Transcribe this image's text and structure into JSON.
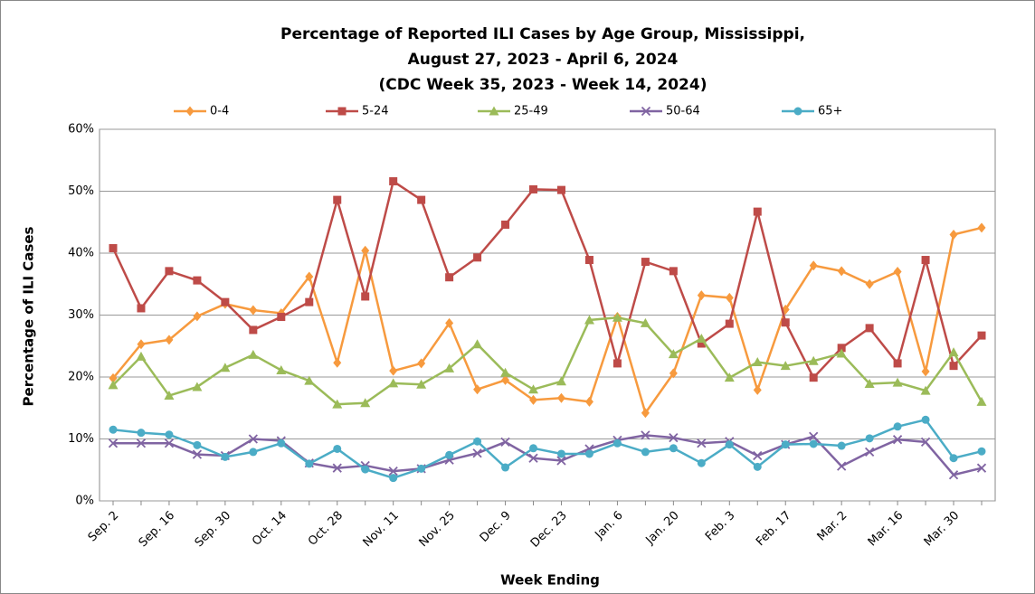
{
  "chart_data": {
    "type": "line",
    "title": [
      "Percentage of Reported ILI Cases by Age Group, Mississippi,",
      "August 27, 2023 - April 6, 2024",
      "(CDC Week 35, 2023 - Week 14, 2024)"
    ],
    "x_label": "Week Ending",
    "y_label": "Percentage of ILI Cases",
    "categories": [
      "Sep. 2",
      null,
      "Sep. 16",
      null,
      "Sep. 30",
      null,
      "Oct. 14",
      null,
      "Oct. 28",
      null,
      "Nov. 11",
      null,
      "Nov. 25",
      null,
      "Dec. 9",
      null,
      "Dec. 23",
      null,
      "Jan. 6",
      null,
      "Jan. 20",
      null,
      "Feb. 3",
      null,
      "Feb. 17",
      null,
      "Mar. 2",
      null,
      "Mar. 16",
      null,
      "Mar. 30",
      null
    ],
    "ylim": [
      0,
      60
    ],
    "yticks": [
      {
        "value": 0,
        "label": "0%"
      },
      {
        "value": 10,
        "label": "10%"
      },
      {
        "value": 20,
        "label": "20%"
      },
      {
        "value": 30,
        "label": "30%"
      },
      {
        "value": 40,
        "label": "40%"
      },
      {
        "value": 50,
        "label": "50%"
      },
      {
        "value": 60,
        "label": "60%"
      }
    ],
    "grid": true,
    "legend": "top",
    "series": [
      {
        "name": "0-4",
        "color": "#f79a3e",
        "marker": "diamond",
        "values": [
          19.8,
          25.3,
          26,
          29.8,
          31.8,
          30.8,
          30.3,
          36.2,
          22.3,
          40.4,
          21,
          22.2,
          28.7,
          18,
          19.5,
          16.3,
          16.6,
          16,
          29.7,
          14.2,
          20.6,
          33.2,
          32.8,
          17.9,
          30.9,
          38,
          37.1,
          35,
          37,
          20.9,
          43,
          44.1
        ]
      },
      {
        "name": "5-24",
        "color": "#be4b48",
        "marker": "square",
        "values": [
          40.8,
          31.1,
          37.1,
          35.6,
          32.1,
          27.6,
          29.7,
          32.1,
          48.6,
          33,
          51.6,
          48.6,
          36.1,
          39.3,
          44.6,
          50.3,
          50.2,
          38.9,
          22.2,
          38.6,
          37.1,
          25.4,
          28.6,
          46.7,
          28.8,
          19.9,
          24.7,
          27.9,
          22.2,
          38.9,
          21.8,
          26.7
        ]
      },
      {
        "name": "25-49",
        "color": "#9bbb59",
        "marker": "triangle",
        "values": [
          18.7,
          23.3,
          17,
          18.4,
          21.5,
          23.6,
          21.1,
          19.4,
          15.6,
          15.8,
          19,
          18.8,
          21.4,
          25.3,
          20.7,
          18,
          19.3,
          29.2,
          29.6,
          28.7,
          23.7,
          26.2,
          19.9,
          22.4,
          21.8,
          22.6,
          23.8,
          18.9,
          19.1,
          17.8,
          24,
          16
        ]
      },
      {
        "name": "50-64",
        "color": "#8064a2",
        "marker": "x",
        "values": [
          9.3,
          9.3,
          9.3,
          7.5,
          7.3,
          10,
          9.7,
          6.1,
          5.3,
          5.7,
          4.8,
          5.2,
          6.6,
          7.7,
          9.5,
          6.9,
          6.5,
          8.4,
          9.8,
          10.6,
          10.2,
          9.3,
          9.6,
          7.3,
          9.1,
          10.4,
          5.6,
          7.9,
          9.9,
          9.5,
          4.2,
          5.3
        ]
      },
      {
        "name": "65+",
        "color": "#4bacc6",
        "marker": "circle",
        "values": [
          11.5,
          11,
          10.7,
          9,
          7.1,
          7.9,
          9.3,
          6,
          8.4,
          5.1,
          3.7,
          5.2,
          7.4,
          9.6,
          5.4,
          8.5,
          7.6,
          7.6,
          9.3,
          7.9,
          8.5,
          6.1,
          9.1,
          5.5,
          9.1,
          9.2,
          8.9,
          10.1,
          12,
          13.1,
          6.9,
          8
        ]
      }
    ]
  }
}
